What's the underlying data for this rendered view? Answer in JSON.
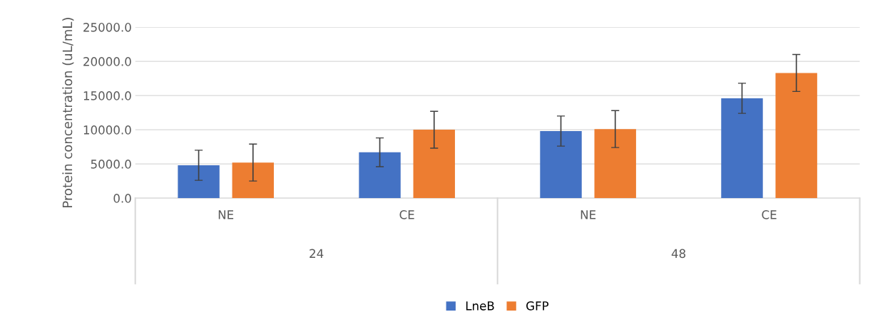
{
  "chart_data": {
    "type": "bar",
    "ylabel": "Protein concentration (uL/mL)",
    "categories": [
      "NE",
      "CE",
      "NE",
      "CE"
    ],
    "annotations": [
      "24",
      "48"
    ],
    "series": [
      {
        "name": "LneB",
        "color": "#4472c4",
        "values": [
          4800,
          6700,
          9800,
          14600
        ],
        "errors": [
          2200,
          2100,
          2200,
          2200
        ]
      },
      {
        "name": "GFP",
        "color": "#ed7d31",
        "values": [
          5200,
          10000,
          10100,
          18300
        ],
        "errors": [
          2700,
          2700,
          2700,
          2700
        ]
      }
    ],
    "ylim": [
      0,
      25000
    ],
    "yticks": [
      {
        "value": 0,
        "label": "0.0"
      },
      {
        "value": 5000,
        "label": "5000.0"
      },
      {
        "value": 10000,
        "label": "10000.0"
      },
      {
        "value": 15000,
        "label": "15000.0"
      },
      {
        "value": 20000,
        "label": "20000.0"
      },
      {
        "value": 25000,
        "label": "25000.0"
      }
    ],
    "grid": "y",
    "legend": "bottom"
  }
}
